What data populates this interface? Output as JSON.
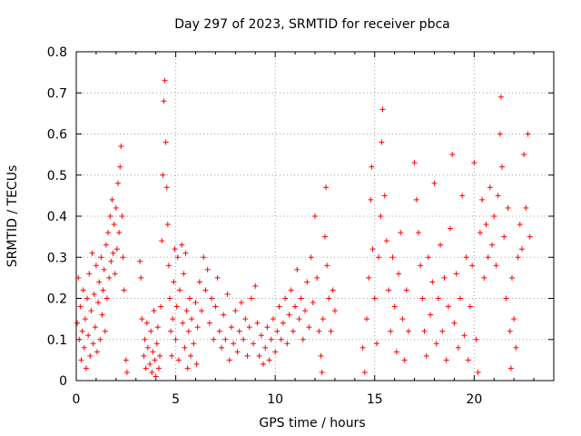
{
  "chart_data": {
    "type": "scatter",
    "title": "Day 297 of 2023, SRMTID for receiver pbca",
    "xlabel": "GPS time / hours",
    "ylabel": "SRMTID / TECUs",
    "xlim": [
      0,
      24
    ],
    "ylim": [
      0,
      0.8
    ],
    "x_ticks": [
      0,
      5,
      10,
      15,
      20
    ],
    "x_tick_labels": [
      "0",
      "5",
      "10",
      "15",
      "20"
    ],
    "y_ticks": [
      0,
      0.1,
      0.2,
      0.3,
      0.4,
      0.5,
      0.6,
      0.7,
      0.8
    ],
    "y_tick_labels": [
      "0",
      "0.1",
      "0.2",
      "0.3",
      "0.4",
      "0.5",
      "0.6",
      "0.7",
      "0.8"
    ],
    "grid": true,
    "marker": "+",
    "color": "#ff0000",
    "series": [
      {
        "name": "SRMTID",
        "points": [
          [
            0.05,
            0.14
          ],
          [
            0.1,
            0.25
          ],
          [
            0.15,
            0.1
          ],
          [
            0.2,
            0.18
          ],
          [
            0.25,
            0.05
          ],
          [
            0.3,
            0.12
          ],
          [
            0.35,
            0.22
          ],
          [
            0.4,
            0.08
          ],
          [
            0.45,
            0.15
          ],
          [
            0.5,
            0.03
          ],
          [
            0.55,
            0.2
          ],
          [
            0.6,
            0.11
          ],
          [
            0.65,
            0.26
          ],
          [
            0.7,
            0.06
          ],
          [
            0.75,
            0.17
          ],
          [
            0.8,
            0.31
          ],
          [
            0.85,
            0.09
          ],
          [
            0.9,
            0.21
          ],
          [
            0.95,
            0.13
          ],
          [
            1.0,
            0.28
          ],
          [
            1.05,
            0.07
          ],
          [
            1.1,
            0.19
          ],
          [
            1.15,
            0.24
          ],
          [
            1.2,
            0.1
          ],
          [
            1.25,
            0.3
          ],
          [
            1.3,
            0.16
          ],
          [
            1.35,
            0.22
          ],
          [
            1.4,
            0.27
          ],
          [
            1.45,
            0.12
          ],
          [
            1.5,
            0.33
          ],
          [
            1.55,
            0.2
          ],
          [
            1.6,
            0.36
          ],
          [
            1.65,
            0.25
          ],
          [
            1.7,
            0.4
          ],
          [
            1.75,
            0.29
          ],
          [
            1.8,
            0.44
          ],
          [
            1.85,
            0.31
          ],
          [
            1.9,
            0.38
          ],
          [
            1.95,
            0.26
          ],
          [
            2.0,
            0.42
          ],
          [
            2.05,
            0.32
          ],
          [
            2.1,
            0.48
          ],
          [
            2.15,
            0.36
          ],
          [
            2.2,
            0.52
          ],
          [
            2.25,
            0.57
          ],
          [
            2.3,
            0.4
          ],
          [
            2.35,
            0.3
          ],
          [
            2.4,
            0.22
          ],
          [
            2.5,
            0.05
          ],
          [
            2.55,
            0.02
          ],
          [
            3.2,
            0.29
          ],
          [
            3.25,
            0.25
          ],
          [
            3.3,
            0.15
          ],
          [
            3.4,
            0.06
          ],
          [
            3.45,
            0.1
          ],
          [
            3.5,
            0.03
          ],
          [
            3.55,
            0.14
          ],
          [
            3.6,
            0.08
          ],
          [
            3.7,
            0.04
          ],
          [
            3.75,
            0.12
          ],
          [
            3.8,
            0.02
          ],
          [
            3.85,
            0.07
          ],
          [
            3.9,
            0.17
          ],
          [
            3.95,
            0.05
          ],
          [
            4.0,
            0.01
          ],
          [
            4.05,
            0.09
          ],
          [
            4.1,
            0.13
          ],
          [
            4.15,
            0.03
          ],
          [
            4.2,
            0.06
          ],
          [
            4.25,
            0.18
          ],
          [
            4.3,
            0.34
          ],
          [
            4.35,
            0.5
          ],
          [
            4.4,
            0.68
          ],
          [
            4.45,
            0.73
          ],
          [
            4.5,
            0.58
          ],
          [
            4.55,
            0.47
          ],
          [
            4.6,
            0.38
          ],
          [
            4.65,
            0.28
          ],
          [
            4.7,
            0.2
          ],
          [
            4.75,
            0.12
          ],
          [
            4.8,
            0.06
          ],
          [
            4.85,
            0.15
          ],
          [
            4.9,
            0.24
          ],
          [
            4.95,
            0.32
          ],
          [
            5.0,
            0.1
          ],
          [
            5.05,
            0.18
          ],
          [
            5.1,
            0.3
          ],
          [
            5.15,
            0.05
          ],
          [
            5.2,
            0.22
          ],
          [
            5.3,
            0.33
          ],
          [
            5.35,
            0.14
          ],
          [
            5.4,
            0.26
          ],
          [
            5.45,
            0.08
          ],
          [
            5.5,
            0.31
          ],
          [
            5.55,
            0.17
          ],
          [
            5.6,
            0.03
          ],
          [
            5.65,
            0.12
          ],
          [
            5.7,
            0.2
          ],
          [
            5.75,
            0.06
          ],
          [
            5.8,
            0.15
          ],
          [
            5.9,
            0.09
          ],
          [
            6.0,
            0.19
          ],
          [
            6.05,
            0.04
          ],
          [
            6.1,
            0.13
          ],
          [
            6.2,
            0.24
          ],
          [
            6.3,
            0.17
          ],
          [
            6.4,
            0.3
          ],
          [
            6.5,
            0.22
          ],
          [
            6.6,
            0.27
          ],
          [
            6.7,
            0.14
          ],
          [
            6.8,
            0.2
          ],
          [
            6.9,
            0.1
          ],
          [
            7.0,
            0.18
          ],
          [
            7.1,
            0.25
          ],
          [
            7.2,
            0.12
          ],
          [
            7.3,
            0.08
          ],
          [
            7.4,
            0.16
          ],
          [
            7.5,
            0.1
          ],
          [
            7.6,
            0.21
          ],
          [
            7.7,
            0.05
          ],
          [
            7.8,
            0.13
          ],
          [
            7.9,
            0.09
          ],
          [
            8.0,
            0.17
          ],
          [
            8.1,
            0.07
          ],
          [
            8.2,
            0.12
          ],
          [
            8.3,
            0.19
          ],
          [
            8.4,
            0.1
          ],
          [
            8.5,
            0.15
          ],
          [
            8.6,
            0.06
          ],
          [
            8.7,
            0.13
          ],
          [
            8.8,
            0.2
          ],
          [
            8.9,
            0.09
          ],
          [
            9.0,
            0.23
          ],
          [
            9.1,
            0.14
          ],
          [
            9.2,
            0.06
          ],
          [
            9.3,
            0.11
          ],
          [
            9.4,
            0.04
          ],
          [
            9.5,
            0.08
          ],
          [
            9.6,
            0.13
          ],
          [
            9.7,
            0.05
          ],
          [
            9.8,
            0.1
          ],
          [
            9.9,
            0.15
          ],
          [
            10.0,
            0.07
          ],
          [
            10.1,
            0.12
          ],
          [
            10.2,
            0.18
          ],
          [
            10.3,
            0.1
          ],
          [
            10.4,
            0.14
          ],
          [
            10.5,
            0.2
          ],
          [
            10.6,
            0.09
          ],
          [
            10.7,
            0.16
          ],
          [
            10.8,
            0.22
          ],
          [
            10.9,
            0.12
          ],
          [
            11.0,
            0.18
          ],
          [
            11.1,
            0.27
          ],
          [
            11.2,
            0.15
          ],
          [
            11.3,
            0.2
          ],
          [
            11.4,
            0.1
          ],
          [
            11.5,
            0.17
          ],
          [
            11.6,
            0.24
          ],
          [
            11.7,
            0.13
          ],
          [
            11.8,
            0.3
          ],
          [
            11.9,
            0.19
          ],
          [
            12.0,
            0.4
          ],
          [
            12.1,
            0.25
          ],
          [
            12.2,
            0.12
          ],
          [
            12.3,
            0.06
          ],
          [
            12.35,
            0.02
          ],
          [
            12.4,
            0.15
          ],
          [
            12.5,
            0.35
          ],
          [
            12.55,
            0.47
          ],
          [
            12.6,
            0.28
          ],
          [
            12.7,
            0.2
          ],
          [
            12.8,
            0.12
          ],
          [
            12.9,
            0.22
          ],
          [
            13.0,
            0.17
          ],
          [
            14.4,
            0.08
          ],
          [
            14.5,
            0.02
          ],
          [
            14.6,
            0.15
          ],
          [
            14.7,
            0.25
          ],
          [
            14.8,
            0.44
          ],
          [
            14.85,
            0.52
          ],
          [
            14.9,
            0.32
          ],
          [
            15.0,
            0.2
          ],
          [
            15.1,
            0.09
          ],
          [
            15.2,
            0.3
          ],
          [
            15.3,
            0.4
          ],
          [
            15.35,
            0.58
          ],
          [
            15.4,
            0.66
          ],
          [
            15.5,
            0.45
          ],
          [
            15.6,
            0.34
          ],
          [
            15.7,
            0.22
          ],
          [
            15.8,
            0.12
          ],
          [
            15.9,
            0.3
          ],
          [
            16.0,
            0.18
          ],
          [
            16.1,
            0.07
          ],
          [
            16.2,
            0.26
          ],
          [
            16.3,
            0.36
          ],
          [
            16.4,
            0.15
          ],
          [
            16.5,
            0.05
          ],
          [
            16.6,
            0.22
          ],
          [
            16.7,
            0.12
          ],
          [
            17.0,
            0.53
          ],
          [
            17.1,
            0.44
          ],
          [
            17.2,
            0.36
          ],
          [
            17.3,
            0.28
          ],
          [
            17.4,
            0.2
          ],
          [
            17.5,
            0.12
          ],
          [
            17.6,
            0.06
          ],
          [
            17.7,
            0.3
          ],
          [
            17.8,
            0.16
          ],
          [
            17.9,
            0.24
          ],
          [
            18.0,
            0.48
          ],
          [
            18.1,
            0.09
          ],
          [
            18.2,
            0.2
          ],
          [
            18.3,
            0.33
          ],
          [
            18.4,
            0.12
          ],
          [
            18.5,
            0.25
          ],
          [
            18.6,
            0.05
          ],
          [
            18.7,
            0.18
          ],
          [
            18.8,
            0.37
          ],
          [
            18.9,
            0.55
          ],
          [
            19.0,
            0.14
          ],
          [
            19.1,
            0.26
          ],
          [
            19.2,
            0.08
          ],
          [
            19.3,
            0.2
          ],
          [
            19.4,
            0.45
          ],
          [
            19.5,
            0.11
          ],
          [
            19.6,
            0.3
          ],
          [
            19.7,
            0.05
          ],
          [
            19.8,
            0.18
          ],
          [
            19.9,
            0.28
          ],
          [
            20.0,
            0.53
          ],
          [
            20.1,
            0.1
          ],
          [
            20.2,
            0.02
          ],
          [
            20.3,
            0.36
          ],
          [
            20.4,
            0.44
          ],
          [
            20.5,
            0.25
          ],
          [
            20.6,
            0.38
          ],
          [
            20.7,
            0.3
          ],
          [
            20.8,
            0.47
          ],
          [
            20.9,
            0.33
          ],
          [
            21.0,
            0.4
          ],
          [
            21.1,
            0.28
          ],
          [
            21.2,
            0.45
          ],
          [
            21.3,
            0.6
          ],
          [
            21.35,
            0.69
          ],
          [
            21.4,
            0.52
          ],
          [
            21.5,
            0.35
          ],
          [
            21.6,
            0.2
          ],
          [
            21.7,
            0.42
          ],
          [
            21.8,
            0.12
          ],
          [
            21.85,
            0.03
          ],
          [
            21.9,
            0.25
          ],
          [
            22.0,
            0.15
          ],
          [
            22.1,
            0.08
          ],
          [
            22.2,
            0.3
          ],
          [
            22.3,
            0.38
          ],
          [
            22.4,
            0.32
          ],
          [
            22.5,
            0.55
          ],
          [
            22.6,
            0.42
          ],
          [
            22.7,
            0.6
          ],
          [
            22.8,
            0.35
          ]
        ]
      }
    ]
  }
}
